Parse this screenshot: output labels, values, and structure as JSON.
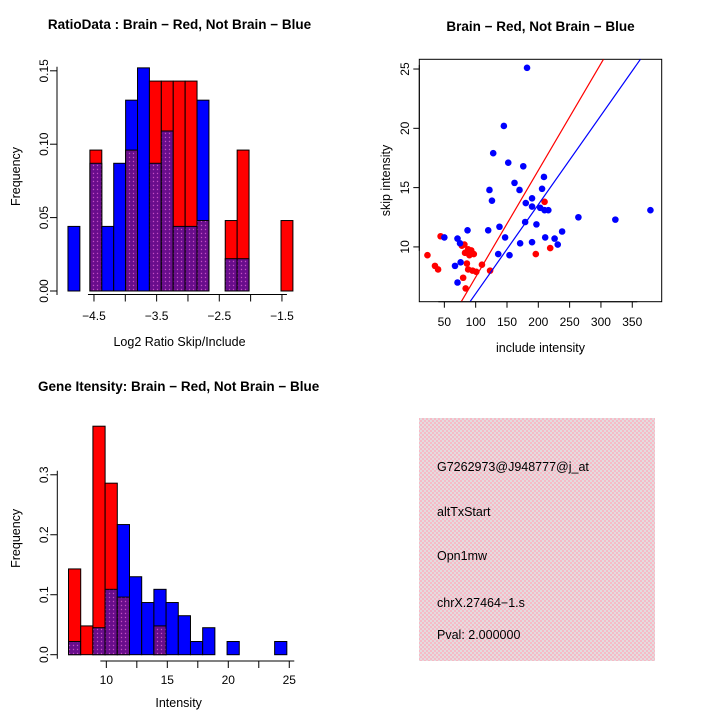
{
  "figure": {
    "background": "#ffffff",
    "colors": {
      "red": "#ff0000",
      "blue": "#0000ff",
      "overlap_purple": "#690d8c",
      "overlap_dot": "#c44fc4",
      "axis_black": "#000000",
      "box_pink_a": "#f7bac6",
      "box_pink_b": "#e3dcdf",
      "pval_red": "#a52a2a"
    }
  },
  "chart_data": [
    {
      "panel": "top-left",
      "type": "bar",
      "subtype": "overlaid-histogram",
      "title": "RatioData : Brain − Red, Not Brain − Blue",
      "xlabel": "Log2 Ratio Skip/Include",
      "ylabel": "Frequency",
      "xlim": [
        -5.09,
        -1.18
      ],
      "ylim": [
        0,
        0.156
      ],
      "grid": false,
      "bin_width": 0.19,
      "x_ticks": [
        {
          "v": -4.5,
          "label": "−4.5"
        },
        {
          "v": -4.0,
          "label": ""
        },
        {
          "v": -3.5,
          "label": "−3.5"
        },
        {
          "v": -3.0,
          "label": ""
        },
        {
          "v": -2.5,
          "label": "−2.5"
        },
        {
          "v": -2.0,
          "label": ""
        },
        {
          "v": -1.5,
          "label": "−1.5"
        }
      ],
      "y_ticks": [
        {
          "v": 0.0,
          "label": "0.00"
        },
        {
          "v": 0.05,
          "label": "0.05"
        },
        {
          "v": 0.1,
          "label": "0.10"
        },
        {
          "v": 0.15,
          "label": "0.15"
        }
      ],
      "bars": [
        {
          "x": -4.82,
          "h": 0.044,
          "color": "blue",
          "overlap": 0
        },
        {
          "x": -4.47,
          "h": 0.096,
          "color": "red",
          "overlap": 0.087
        },
        {
          "x": -4.28,
          "h": 0.044,
          "color": "blue",
          "overlap": 0
        },
        {
          "x": -4.09,
          "h": 0.087,
          "color": "blue",
          "overlap": 0
        },
        {
          "x": -3.9,
          "h": 0.13,
          "color": "blue",
          "overlap": 0.096
        },
        {
          "x": -3.71,
          "h": 0.152,
          "color": "blue",
          "overlap": 0
        },
        {
          "x": -3.52,
          "h": 0.143,
          "color": "red",
          "overlap": 0.087
        },
        {
          "x": -3.33,
          "h": 0.143,
          "color": "red",
          "overlap": 0.109
        },
        {
          "x": -3.14,
          "h": 0.143,
          "color": "red",
          "overlap": 0.044
        },
        {
          "x": -2.95,
          "h": 0.143,
          "color": "red",
          "overlap": 0.044
        },
        {
          "x": -2.76,
          "h": 0.13,
          "color": "blue",
          "overlap": 0.048
        },
        {
          "x": -2.31,
          "h": 0.048,
          "color": "red",
          "overlap": 0.022
        },
        {
          "x": -2.12,
          "h": 0.096,
          "color": "red",
          "overlap": 0.022
        },
        {
          "x": -1.42,
          "h": 0.048,
          "color": "red",
          "overlap": 0
        }
      ]
    },
    {
      "panel": "top-right",
      "type": "scatter",
      "title": "Brain − Red, Not Brain − Blue",
      "xlabel": "include intensity",
      "ylabel": "skip intensity",
      "xlim": [
        10,
        397
      ],
      "ylim": [
        5.38,
        25.82
      ],
      "grid": false,
      "x_ticks": [
        {
          "v": 50,
          "label": "50"
        },
        {
          "v": 100,
          "label": "100"
        },
        {
          "v": 150,
          "label": "150"
        },
        {
          "v": 200,
          "label": "200"
        },
        {
          "v": 250,
          "label": "250"
        },
        {
          "v": 300,
          "label": "300"
        },
        {
          "v": 350,
          "label": "350"
        }
      ],
      "y_ticks": [
        {
          "v": 10,
          "label": "10"
        },
        {
          "v": 15,
          "label": "15"
        },
        {
          "v": 20,
          "label": "20"
        },
        {
          "v": 25,
          "label": "25"
        }
      ],
      "series": [
        {
          "name": "Brain",
          "color": "red",
          "points": [
            [
              23,
              9.3
            ],
            [
              35,
              8.4
            ],
            [
              40,
              8.1
            ],
            [
              44,
              10.9
            ],
            [
              78,
              10.1
            ],
            [
              82,
              10.2
            ],
            [
              83,
              9.5
            ],
            [
              88,
              9.8
            ],
            [
              90,
              9.3
            ],
            [
              93,
              9.7
            ],
            [
              97,
              9.4
            ],
            [
              86,
              8.6
            ],
            [
              88,
              8.1
            ],
            [
              95,
              8.0
            ],
            [
              101,
              7.9
            ],
            [
              110,
              8.5
            ],
            [
              123,
              8.0
            ],
            [
              80,
              7.4
            ],
            [
              84,
              6.5
            ],
            [
              196,
              9.4
            ],
            [
              219,
              9.9
            ],
            [
              210,
              13.8
            ]
          ]
        },
        {
          "name": "Not Brain",
          "color": "blue",
          "points": [
            [
              182,
              25.1
            ],
            [
              145,
              20.2
            ],
            [
              128,
              17.9
            ],
            [
              152,
              17.1
            ],
            [
              176,
              16.8
            ],
            [
              209,
              15.9
            ],
            [
              206,
              14.9
            ],
            [
              162,
              15.4
            ],
            [
              170,
              14.8
            ],
            [
              122,
              14.8
            ],
            [
              126,
              13.9
            ],
            [
              190,
              14.1
            ],
            [
              180,
              13.7
            ],
            [
              190,
              13.4
            ],
            [
              203,
              13.3
            ],
            [
              210,
              13.1
            ],
            [
              216,
              13.1
            ],
            [
              264,
              12.5
            ],
            [
              323,
              12.3
            ],
            [
              379,
              13.1
            ],
            [
              197,
              11.9
            ],
            [
              238,
              11.3
            ],
            [
              211,
              10.8
            ],
            [
              226,
              10.7
            ],
            [
              231,
              10.2
            ],
            [
              179,
              12.1
            ],
            [
              171,
              10.3
            ],
            [
              120,
              11.4
            ],
            [
              138,
              11.7
            ],
            [
              87,
              11.4
            ],
            [
              50,
              10.8
            ],
            [
              71,
              10.7
            ],
            [
              75,
              10.3
            ],
            [
              67,
              8.4
            ],
            [
              76,
              8.7
            ],
            [
              71,
              7.0
            ],
            [
              147,
              10.8
            ],
            [
              154,
              9.3
            ],
            [
              136,
              9.4
            ],
            [
              190,
              10.4
            ]
          ]
        }
      ],
      "lines": [
        {
          "name": "brain-fit-line",
          "color": "red",
          "x1": 77,
          "y1": 5.38,
          "x2": 304,
          "y2": 25.82
        },
        {
          "name": "notbrain-fit-line",
          "color": "blue",
          "x1": 91,
          "y1": 5.38,
          "x2": 363,
          "y2": 25.82
        }
      ]
    },
    {
      "panel": "bottom-left",
      "type": "bar",
      "subtype": "overlaid-histogram",
      "title": "Gene Itensity: Brain − Red, Not Brain − Blue",
      "xlabel": "Intensity",
      "ylabel": "Frequency",
      "xlim": [
        5.98,
        25.88
      ],
      "ylim": [
        0,
        0.388
      ],
      "grid": false,
      "bin_width": 1.0,
      "x_ticks": [
        {
          "v": 10,
          "label": "10"
        },
        {
          "v": 12.5,
          "label": ""
        },
        {
          "v": 15,
          "label": "15"
        },
        {
          "v": 17.5,
          "label": ""
        },
        {
          "v": 20,
          "label": "20"
        },
        {
          "v": 22.5,
          "label": ""
        },
        {
          "v": 25,
          "label": "25"
        }
      ],
      "y_ticks": [
        {
          "v": 0.0,
          "label": "0.0"
        },
        {
          "v": 0.1,
          "label": "0.1"
        },
        {
          "v": 0.2,
          "label": "0.2"
        },
        {
          "v": 0.3,
          "label": "0.3"
        }
      ],
      "bars": [
        {
          "x": 7.4,
          "h": 0.143,
          "color": "red",
          "overlap": 0.022
        },
        {
          "x": 8.4,
          "h": 0.048,
          "color": "red",
          "overlap": 0
        },
        {
          "x": 9.4,
          "h": 0.381,
          "color": "red",
          "overlap": 0.045
        },
        {
          "x": 10.4,
          "h": 0.286,
          "color": "red",
          "overlap": 0.109
        },
        {
          "x": 11.4,
          "h": 0.217,
          "color": "blue",
          "overlap": 0.096
        },
        {
          "x": 12.4,
          "h": 0.13,
          "color": "blue",
          "overlap": 0
        },
        {
          "x": 13.4,
          "h": 0.087,
          "color": "blue",
          "overlap": 0
        },
        {
          "x": 14.4,
          "h": 0.109,
          "color": "blue",
          "overlap": 0.048
        },
        {
          "x": 15.4,
          "h": 0.087,
          "color": "blue",
          "overlap": 0
        },
        {
          "x": 16.4,
          "h": 0.065,
          "color": "blue",
          "overlap": 0
        },
        {
          "x": 17.4,
          "h": 0.022,
          "color": "blue",
          "overlap": 0
        },
        {
          "x": 18.4,
          "h": 0.045,
          "color": "blue",
          "overlap": 0
        },
        {
          "x": 20.4,
          "h": 0.022,
          "color": "blue",
          "overlap": 0
        },
        {
          "x": 24.3,
          "h": 0.022,
          "color": "blue",
          "overlap": 0
        }
      ]
    },
    {
      "panel": "bottom-right",
      "type": "table",
      "subtype": "info-box",
      "lines": [
        {
          "name": "probe-id",
          "text": "G7262973@J948777@j_at",
          "color": "#000000"
        },
        {
          "name": "event-type",
          "text": "altTxStart",
          "color": "#000000"
        },
        {
          "name": "gene-name",
          "text": "Opn1mw",
          "color": "#000000"
        },
        {
          "name": "locus-id",
          "text": "chrX.27464−1.s",
          "color": "#000000"
        },
        {
          "name": "pval",
          "text": "Pval: 2.000000",
          "color": "#a52a2a"
        }
      ]
    }
  ]
}
